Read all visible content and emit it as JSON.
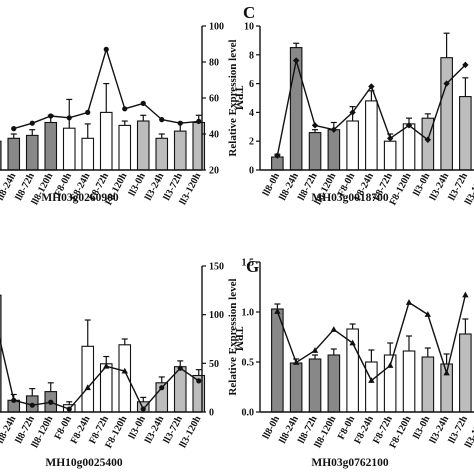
{
  "chart_data": [
    {
      "id": "top-left",
      "type": "bar+line",
      "gene_label": "MH03g0260900",
      "letter": "",
      "ylabel_left": "",
      "ylabel_right": "TPM",
      "ylim_left": [
        0,
        1
      ],
      "ylim_right": [
        20,
        100
      ],
      "yticks_left": [],
      "yticks_right": [
        "20",
        "40",
        "60",
        "80",
        "100"
      ],
      "categories": [
        "ll8-0h",
        "ll8-24h",
        "ll8-72h",
        "ll8-120h",
        "F8-0h",
        "F8-24h",
        "F8-72h",
        "F8-120h",
        "ll3-0h",
        "ll3-24h",
        "ll3-72h",
        "ll3-120h"
      ],
      "bar_values": [
        0.2,
        0.22,
        0.24,
        0.33,
        0.29,
        0.22,
        0.4,
        0.31,
        0.34,
        0.22,
        0.27,
        0.33
      ],
      "bar_errors": [
        0.03,
        0.03,
        0.04,
        0.05,
        0.2,
        0.1,
        0.2,
        0.03,
        0.04,
        0.03,
        0.06,
        0.05
      ],
      "line_values": [
        null,
        43,
        46,
        50,
        49,
        52,
        87,
        54,
        57,
        48,
        46,
        47
      ],
      "line_marker": "dot"
    },
    {
      "id": "C",
      "type": "bar+line",
      "gene_label": "MH03g0018700",
      "letter": "C",
      "ylabel_left": "Relative Expression level",
      "ylabel_right": "",
      "ylim_left": [
        0,
        10
      ],
      "ylim_right": [
        0,
        1
      ],
      "yticks_left": [
        "0",
        "2",
        "4",
        "6",
        "8",
        "10"
      ],
      "yticks_right": [],
      "categories": [
        "ll8-0h",
        "ll8-24h",
        "ll8-72h",
        "ll8-120h",
        "F8-0h",
        "F8-24h",
        "F8-72h",
        "F8-120h",
        "ll3-0h",
        "ll3-24h",
        "ll3-72h",
        "ll3-120h"
      ],
      "bar_values": [
        0.9,
        8.5,
        2.6,
        2.8,
        3.4,
        4.8,
        2.0,
        3.2,
        3.6,
        7.8,
        5.1,
        5.9
      ],
      "bar_errors": [
        0.2,
        0.3,
        0.2,
        0.5,
        1.0,
        0.7,
        0.5,
        0.4,
        0.3,
        1.7,
        1.3,
        1.0
      ],
      "line_values": [
        0.1,
        0.76,
        0.31,
        0.28,
        0.4,
        0.58,
        0.22,
        0.31,
        0.21,
        0.6,
        0.73,
        null
      ],
      "line_marker": "diamond"
    },
    {
      "id": "bottom-left",
      "type": "bar+line",
      "gene_label": "MH10g0025400",
      "letter": "",
      "ylabel_left": "",
      "ylabel_right": "TPM",
      "ylim_left": [
        0,
        1
      ],
      "ylim_right": [
        0,
        150
      ],
      "yticks_left": [],
      "yticks_right": [
        "0",
        "50",
        "100",
        "150"
      ],
      "categories": [
        "ll8-0h",
        "ll8-24h",
        "ll8-72h",
        "ll8-120h",
        "F8-0h",
        "F8-24h",
        "F8-72h",
        "F8-120h",
        "ll3-0h",
        "ll3-24h",
        "ll3-72h",
        "ll3-120h"
      ],
      "bar_values": [
        0.8,
        0.08,
        0.11,
        0.14,
        0.05,
        0.45,
        0.33,
        0.46,
        0.07,
        0.2,
        0.31,
        0.25
      ],
      "bar_errors": [
        0.05,
        0.04,
        0.05,
        0.06,
        0.02,
        0.18,
        0.05,
        0.04,
        0.03,
        0.04,
        0.04,
        0.04
      ],
      "line_values": [
        95,
        12,
        7,
        10,
        3,
        25,
        47,
        42,
        3,
        25,
        45,
        32
      ],
      "line_marker": "mixed"
    },
    {
      "id": "G",
      "type": "bar+line",
      "gene_label": "MH03g0762100",
      "letter": "G",
      "ylabel_left": "Relative Expression level",
      "ylabel_right": "",
      "ylim_left": [
        0,
        1.5
      ],
      "ylim_right": [
        0,
        1
      ],
      "yticks_left": [
        "0.0",
        "0.5",
        "1.0",
        "1.5"
      ],
      "yticks_right": [],
      "categories": [
        "ll8-0h",
        "ll8-24h",
        "ll8-72h",
        "ll8-120h",
        "F8-0h",
        "F8-24h",
        "F8-72h",
        "F8-120h",
        "ll3-0h",
        "ll3-24h",
        "ll3-72h",
        "ll3-120h"
      ],
      "bar_values": [
        1.03,
        0.49,
        0.53,
        0.57,
        0.83,
        0.5,
        0.57,
        0.61,
        0.55,
        0.48,
        0.78,
        1.03
      ],
      "bar_errors": [
        0.05,
        0.04,
        0.04,
        0.06,
        0.05,
        0.12,
        0.12,
        0.15,
        0.09,
        0.1,
        0.15,
        0.1
      ],
      "line_values": [
        0.67,
        0.33,
        0.41,
        0.55,
        0.46,
        0.21,
        0.31,
        0.73,
        0.65,
        0.26,
        0.78,
        null
      ],
      "line_marker": "triangle"
    }
  ]
}
